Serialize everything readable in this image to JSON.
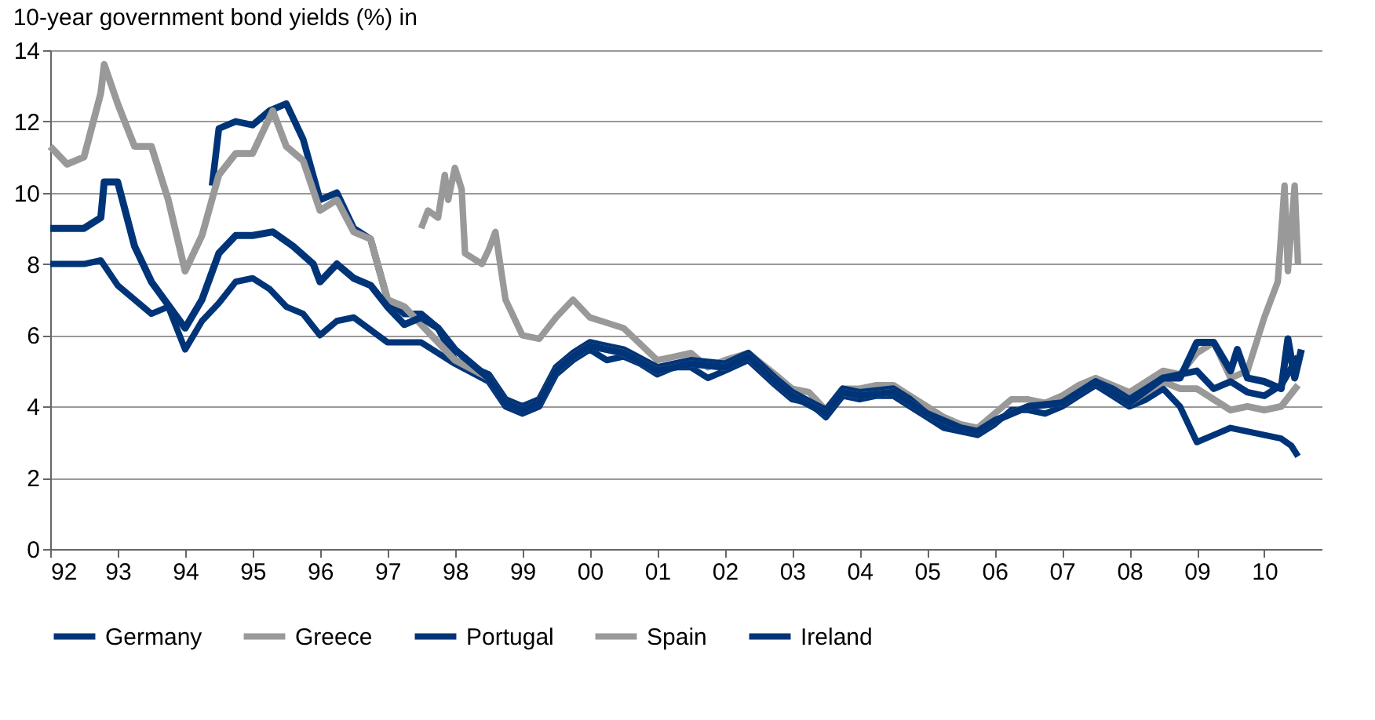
{
  "chart_data": {
    "type": "line",
    "title": "10-year government bond yields (%) in",
    "xlim": [
      1992,
      2010.85
    ],
    "xticks": [
      {
        "value": 1992,
        "label": "92"
      },
      {
        "value": 1993,
        "label": "93"
      },
      {
        "value": 1994,
        "label": "94"
      },
      {
        "value": 1995,
        "label": "95"
      },
      {
        "value": 1996,
        "label": "96"
      },
      {
        "value": 1997,
        "label": "97"
      },
      {
        "value": 1998,
        "label": "98"
      },
      {
        "value": 1999,
        "label": "99"
      },
      {
        "value": 2000,
        "label": "00"
      },
      {
        "value": 2001,
        "label": "01"
      },
      {
        "value": 2002,
        "label": "02"
      },
      {
        "value": 2003,
        "label": "03"
      },
      {
        "value": 2004,
        "label": "04"
      },
      {
        "value": 2005,
        "label": "05"
      },
      {
        "value": 2006,
        "label": "06"
      },
      {
        "value": 2007,
        "label": "07"
      },
      {
        "value": 2008,
        "label": "08"
      },
      {
        "value": 2009,
        "label": "09"
      },
      {
        "value": 2010,
        "label": "10"
      }
    ],
    "ylim": [
      0,
      14
    ],
    "yticks": [
      0,
      2,
      4,
      6,
      8,
      10,
      12,
      14
    ],
    "grid": "y",
    "legend": "bottom",
    "marker": "none",
    "line_style": "solid",
    "series": [
      {
        "name": "Germany",
        "color": "#003478",
        "x": [
          1992,
          1992.5,
          1992.75,
          1993,
          1993.5,
          1993.75,
          1994,
          1994.25,
          1994.5,
          1994.75,
          1995,
          1995.25,
          1995.5,
          1995.75,
          1996,
          1996.25,
          1996.5,
          1997,
          1997.5,
          1998,
          1998.5,
          1998.75,
          1999,
          1999.25,
          1999.5,
          1999.75,
          2000,
          2000.25,
          2000.5,
          2000.75,
          2001,
          2001.25,
          2001.5,
          2001.75,
          2002,
          2002.35,
          2002.75,
          2003,
          2003.25,
          2003.5,
          2003.75,
          2004,
          2004.25,
          2004.5,
          2004.75,
          2005,
          2005.25,
          2005.5,
          2005.75,
          2006,
          2006.25,
          2006.5,
          2006.75,
          2007,
          2007.25,
          2007.5,
          2007.75,
          2008,
          2008.25,
          2008.5,
          2008.75,
          2009,
          2009.25,
          2009.5,
          2009.75,
          2010,
          2010.25,
          2010.4,
          2010.5
        ],
        "values": [
          8.0,
          8.0,
          8.1,
          7.4,
          6.6,
          6.8,
          5.6,
          6.4,
          6.9,
          7.5,
          7.6,
          7.3,
          6.8,
          6.6,
          6.0,
          6.4,
          6.5,
          5.8,
          5.8,
          5.2,
          4.7,
          4.0,
          3.8,
          4.0,
          4.9,
          5.3,
          5.6,
          5.3,
          5.4,
          5.2,
          4.9,
          5.1,
          5.1,
          4.8,
          5.0,
          5.3,
          4.6,
          4.2,
          4.1,
          3.7,
          4.3,
          4.2,
          4.3,
          4.3,
          4.0,
          3.7,
          3.4,
          3.3,
          3.2,
          3.5,
          3.9,
          3.9,
          3.8,
          4.0,
          4.3,
          4.6,
          4.3,
          4.0,
          4.2,
          4.5,
          4.0,
          3.0,
          3.2,
          3.4,
          3.3,
          3.2,
          3.1,
          2.9,
          2.6
        ]
      },
      {
        "name": "Greece",
        "color": "#999999",
        "x": [
          1997.5,
          1997.6,
          1997.75,
          1997.85,
          1997.9,
          1998,
          1998.1,
          1998.15,
          1998.4,
          1998.5,
          1998.6,
          1998.75,
          1999,
          1999.25,
          1999.5,
          1999.75,
          2000,
          2000.5,
          2001,
          2001.25,
          2001.5,
          2001.75,
          2002,
          2002.35,
          2002.75,
          2003,
          2003.25,
          2003.5,
          2003.75,
          2004,
          2004.25,
          2004.5,
          2004.75,
          2005,
          2005.25,
          2005.5,
          2005.75,
          2006,
          2006.25,
          2006.5,
          2006.75,
          2007,
          2007.25,
          2007.5,
          2007.75,
          2008,
          2008.25,
          2008.5,
          2008.75,
          2009,
          2009.25,
          2009.5,
          2009.75,
          2010,
          2010.2,
          2010.3,
          2010.35,
          2010.45,
          2010.5
        ],
        "values": [
          9.0,
          9.5,
          9.3,
          10.5,
          9.8,
          10.7,
          10.1,
          8.3,
          8.0,
          8.4,
          8.9,
          7.0,
          6.0,
          5.9,
          6.5,
          7.0,
          6.5,
          6.2,
          5.3,
          5.4,
          5.5,
          5.1,
          5.3,
          5.5,
          4.9,
          4.5,
          4.4,
          3.9,
          4.5,
          4.5,
          4.6,
          4.6,
          4.3,
          4.0,
          3.7,
          3.5,
          3.4,
          3.8,
          4.2,
          4.2,
          4.1,
          4.3,
          4.6,
          4.8,
          4.6,
          4.4,
          4.7,
          5.0,
          4.9,
          5.5,
          5.8,
          4.8,
          5.0,
          6.5,
          7.5,
          10.2,
          7.8,
          10.2,
          8.0
        ]
      },
      {
        "name": "Portugal",
        "color": "#003478",
        "x": [
          1994.4,
          1994.5,
          1994.75,
          1995,
          1995.25,
          1995.5,
          1995.75,
          1996,
          1996.25,
          1996.5,
          1996.75,
          1997,
          1997.25,
          1997.5,
          1997.75,
          1998,
          1998.5,
          1998.75,
          1999,
          1999.25,
          1999.5,
          1999.75,
          2000,
          2000.5,
          2001,
          2001.5,
          2002,
          2002.35,
          2002.75,
          2003,
          2003.5,
          2003.75,
          2004,
          2004.5,
          2004.75,
          2005,
          2005.5,
          2005.75,
          2006,
          2006.5,
          2007,
          2007.5,
          2007.75,
          2008,
          2008.5,
          2009,
          2009.25,
          2009.5,
          2009.75,
          2010,
          2010.25,
          2010.5
        ],
        "values": [
          10.2,
          11.8,
          12.0,
          11.9,
          12.3,
          12.5,
          11.5,
          9.8,
          10.0,
          9.0,
          8.7,
          7.0,
          6.6,
          6.6,
          6.2,
          5.3,
          4.9,
          4.2,
          4.0,
          4.2,
          5.1,
          5.5,
          5.8,
          5.6,
          5.1,
          5.3,
          5.2,
          5.5,
          4.8,
          4.4,
          3.9,
          4.5,
          4.4,
          4.5,
          4.2,
          3.8,
          3.4,
          3.3,
          3.6,
          4.0,
          4.1,
          4.7,
          4.5,
          4.2,
          4.8,
          5.0,
          4.5,
          4.7,
          4.4,
          4.3,
          4.6,
          5.4
        ]
      },
      {
        "name": "Spain",
        "color": "#999999",
        "x": [
          1992,
          1992.25,
          1992.5,
          1992.75,
          1992.8,
          1993,
          1993.25,
          1993.5,
          1993.75,
          1994,
          1994.25,
          1994.5,
          1994.75,
          1995,
          1995.3,
          1995.5,
          1995.75,
          1996,
          1996.25,
          1996.5,
          1996.75,
          1997,
          1997.25,
          1997.5,
          1998,
          1998.5,
          1998.75,
          1999,
          1999.25,
          1999.5,
          1999.75,
          2000,
          2000.5,
          2001,
          2001.5,
          2002,
          2002.35,
          2002.75,
          2003,
          2003.5,
          2003.75,
          2004,
          2004.5,
          2004.75,
          2005,
          2005.5,
          2005.75,
          2006,
          2006.5,
          2007,
          2007.5,
          2007.75,
          2008,
          2008.5,
          2008.75,
          2009,
          2009.25,
          2009.5,
          2009.75,
          2010,
          2010.25,
          2010.5
        ],
        "values": [
          11.3,
          10.8,
          11.0,
          12.8,
          13.6,
          12.5,
          11.3,
          11.3,
          9.8,
          7.8,
          8.8,
          10.5,
          11.1,
          11.1,
          12.3,
          11.3,
          10.9,
          9.5,
          9.8,
          8.9,
          8.7,
          7.0,
          6.8,
          6.3,
          5.3,
          4.8,
          4.1,
          3.9,
          4.1,
          5.0,
          5.4,
          5.7,
          5.5,
          5.0,
          5.2,
          5.1,
          5.4,
          4.7,
          4.3,
          3.8,
          4.4,
          4.3,
          4.4,
          4.1,
          3.8,
          3.4,
          3.3,
          3.6,
          4.0,
          4.1,
          4.7,
          4.4,
          4.1,
          4.7,
          4.5,
          4.5,
          4.2,
          3.9,
          4.0,
          3.9,
          4.0,
          4.6
        ]
      },
      {
        "name": "Ireland",
        "color": "#003478",
        "x": [
          1992,
          1992.5,
          1992.75,
          1992.8,
          1993,
          1993.25,
          1993.5,
          1994,
          1994.25,
          1994.5,
          1994.75,
          1995,
          1995.3,
          1995.6,
          1995.9,
          1996,
          1996.25,
          1996.5,
          1996.75,
          1997,
          1997.25,
          1997.5,
          1997.75,
          1998,
          1998.5,
          1998.75,
          1999,
          1999.25,
          1999.5,
          1999.75,
          2000,
          2000.5,
          2001,
          2001.5,
          2002,
          2002.35,
          2002.75,
          2003,
          2003.5,
          2003.75,
          2004,
          2004.5,
          2004.75,
          2005,
          2005.5,
          2005.75,
          2006,
          2006.5,
          2007,
          2007.5,
          2007.75,
          2008,
          2008.5,
          2008.75,
          2009,
          2009.25,
          2009.5,
          2009.6,
          2009.75,
          2010,
          2010.25,
          2010.35,
          2010.45,
          2010.55
        ],
        "values": [
          9.0,
          9.0,
          9.3,
          10.3,
          10.3,
          8.5,
          7.5,
          6.2,
          7.0,
          8.3,
          8.8,
          8.8,
          8.9,
          8.5,
          8.0,
          7.5,
          8.0,
          7.6,
          7.4,
          6.8,
          6.3,
          6.5,
          6.2,
          5.6,
          4.8,
          4.1,
          3.9,
          4.1,
          5.0,
          5.4,
          5.7,
          5.5,
          5.0,
          5.2,
          5.1,
          5.4,
          4.7,
          4.3,
          3.8,
          4.4,
          4.3,
          4.4,
          4.1,
          3.8,
          3.4,
          3.3,
          3.6,
          4.0,
          4.1,
          4.7,
          4.4,
          4.1,
          4.8,
          4.8,
          5.8,
          5.8,
          5.0,
          5.6,
          4.8,
          4.7,
          4.5,
          5.9,
          4.8,
          5.6
        ]
      }
    ]
  }
}
